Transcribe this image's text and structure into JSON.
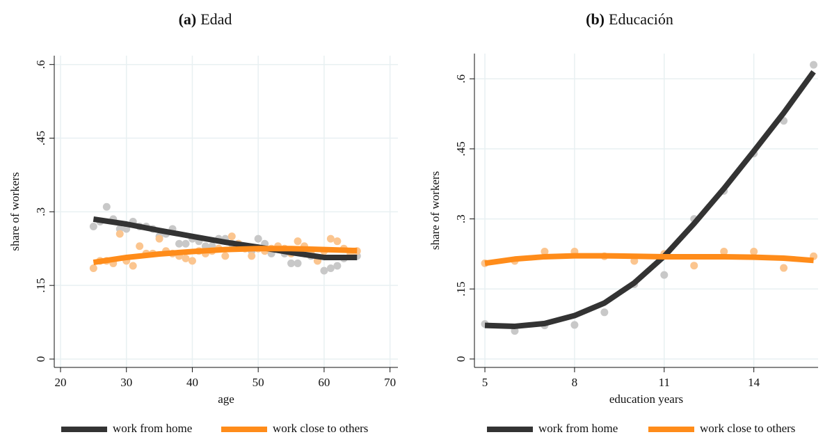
{
  "chart_data": [
    {
      "type": "scatter",
      "title_label": "(a)",
      "title": "Edad",
      "xlabel": "age",
      "ylabel": "share of workers",
      "xlim": [
        19.05,
        71.2
      ],
      "ylim": [
        -0.017,
        0.618
      ],
      "xticks": [
        20,
        30,
        40,
        50,
        60,
        70
      ],
      "yticks": [
        0,
        {
          "value": 0.15,
          "label": ".15"
        },
        {
          "value": 0.3,
          "label": ".3"
        },
        {
          "value": 0.45,
          "label": ".45"
        },
        {
          "value": 0.6,
          "label": ".6"
        }
      ],
      "grid": true,
      "series": [
        {
          "name": "work from home",
          "color": "#333333",
          "point_color": "#c8c8c8",
          "x": [
            25,
            26,
            27,
            28,
            29,
            30,
            31,
            32,
            33,
            34,
            35,
            36,
            37,
            38,
            39,
            40,
            41,
            42,
            43,
            44,
            45,
            46,
            47,
            48,
            49,
            50,
            51,
            52,
            53,
            54,
            55,
            56,
            57,
            58,
            59,
            60,
            61,
            62,
            63,
            64,
            65
          ],
          "values": [
            0.27,
            0.28,
            0.31,
            0.285,
            0.265,
            0.265,
            0.28,
            0.27,
            0.27,
            0.265,
            0.25,
            0.255,
            0.265,
            0.235,
            0.235,
            0.245,
            0.24,
            0.23,
            0.23,
            0.245,
            0.245,
            0.235,
            0.235,
            0.225,
            0.22,
            0.245,
            0.235,
            0.215,
            0.225,
            0.215,
            0.195,
            0.195,
            0.215,
            0.21,
            0.2,
            0.18,
            0.185,
            0.19,
            0.205,
            0.21,
            0.21
          ],
          "fit_x": [
            25,
            30,
            35,
            40,
            45,
            50,
            55,
            60,
            65
          ],
          "fit": [
            0.285,
            0.275,
            0.262,
            0.25,
            0.238,
            0.228,
            0.217,
            0.207,
            0.207
          ]
        },
        {
          "name": "work close to others",
          "color": "#ff8c1a",
          "point_color": "#fbc58f",
          "x": [
            25,
            26,
            27,
            28,
            29,
            30,
            31,
            32,
            33,
            34,
            35,
            36,
            37,
            38,
            39,
            40,
            41,
            42,
            43,
            44,
            45,
            46,
            47,
            48,
            49,
            50,
            51,
            52,
            53,
            54,
            55,
            56,
            57,
            58,
            59,
            60,
            61,
            62,
            63,
            64,
            65
          ],
          "values": [
            0.185,
            0.2,
            0.2,
            0.195,
            0.255,
            0.2,
            0.19,
            0.23,
            0.215,
            0.215,
            0.245,
            0.22,
            0.215,
            0.21,
            0.205,
            0.2,
            0.22,
            0.215,
            0.22,
            0.225,
            0.21,
            0.25,
            0.235,
            0.225,
            0.21,
            0.225,
            0.22,
            0.225,
            0.23,
            0.225,
            0.215,
            0.24,
            0.23,
            0.215,
            0.2,
            0.22,
            0.245,
            0.24,
            0.225,
            0.215,
            0.22
          ],
          "fit_x": [
            25,
            30,
            35,
            40,
            45,
            50,
            55,
            60,
            65
          ],
          "fit": [
            0.197,
            0.207,
            0.214,
            0.219,
            0.223,
            0.225,
            0.225,
            0.223,
            0.221
          ]
        }
      ]
    },
    {
      "type": "scatter",
      "title_label": "(b)",
      "title": "Educación",
      "xlabel": "education years",
      "ylabel": "share of workers",
      "xlim": [
        4.65,
        16.15
      ],
      "ylim": [
        -0.018,
        0.654
      ],
      "xticks": [
        5,
        8,
        11,
        14
      ],
      "yticks": [
        0,
        {
          "value": 0.15,
          "label": ".15"
        },
        {
          "value": 0.3,
          "label": ".3"
        },
        {
          "value": 0.45,
          "label": ".45"
        },
        {
          "value": 0.6,
          "label": ".6"
        }
      ],
      "grid": true,
      "series": [
        {
          "name": "work from home",
          "color": "#333333",
          "point_color": "#c8c8c8",
          "x": [
            5,
            6,
            7,
            8,
            9,
            10,
            11,
            12,
            13,
            14,
            15,
            16
          ],
          "values": [
            0.075,
            0.06,
            0.072,
            0.073,
            0.1,
            0.16,
            0.18,
            0.3,
            0.36,
            0.44,
            0.51,
            0.63
          ],
          "fit_x": [
            5,
            6,
            7,
            8,
            9,
            10,
            11,
            12,
            13,
            14,
            15,
            16
          ],
          "fit": [
            0.072,
            0.07,
            0.076,
            0.093,
            0.12,
            0.163,
            0.22,
            0.29,
            0.365,
            0.445,
            0.527,
            0.615
          ]
        },
        {
          "name": "work close to others",
          "color": "#ff8c1a",
          "point_color": "#fbc58f",
          "x": [
            5,
            6,
            7,
            8,
            9,
            10,
            11,
            12,
            13,
            14,
            15,
            16
          ],
          "values": [
            0.205,
            0.21,
            0.23,
            0.23,
            0.22,
            0.21,
            0.225,
            0.2,
            0.23,
            0.23,
            0.195,
            0.22
          ],
          "fit_x": [
            5,
            6,
            7,
            8,
            9,
            10,
            11,
            12,
            13,
            14,
            15,
            16
          ],
          "fit": [
            0.205,
            0.214,
            0.219,
            0.221,
            0.221,
            0.22,
            0.219,
            0.219,
            0.219,
            0.218,
            0.216,
            0.211
          ]
        }
      ]
    }
  ]
}
